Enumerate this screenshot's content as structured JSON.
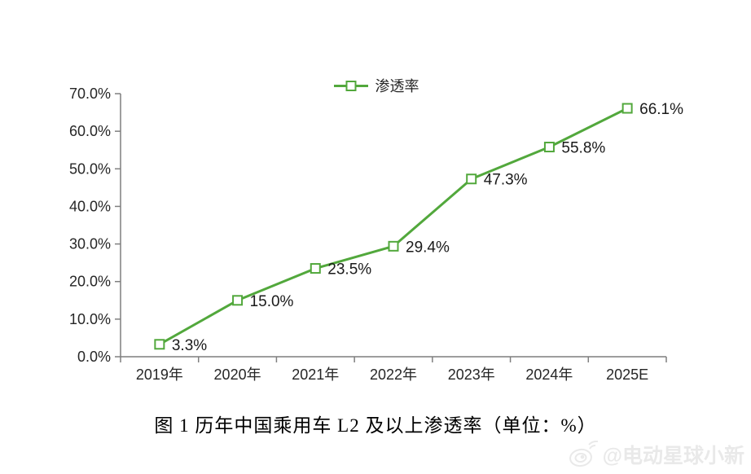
{
  "figure": {
    "title": "图 1  历年中国乘用车 L2 及以上渗透率（单位：%）",
    "watermark": "@电动星球小新"
  },
  "legend": {
    "label": "渗透率"
  },
  "chart_data": {
    "type": "line",
    "title": "图 1 历年中国乘用车 L2 及以上渗透率（单位：%）",
    "categories": [
      "2019年",
      "2020年",
      "2021年",
      "2022年",
      "2023年",
      "2024年",
      "2025E"
    ],
    "series": [
      {
        "name": "渗透率",
        "values": [
          3.3,
          15.0,
          23.5,
          29.4,
          47.3,
          55.8,
          66.1
        ]
      }
    ],
    "point_labels": [
      "3.3%",
      "15.0%",
      "23.5%",
      "29.4%",
      "47.3%",
      "55.8%",
      "66.1%"
    ],
    "xlabel": "",
    "ylabel": "",
    "ylim": [
      0,
      70
    ],
    "ytick_step": 10,
    "ytick_labels": [
      "0.0%",
      "10.0%",
      "20.0%",
      "30.0%",
      "40.0%",
      "50.0%",
      "60.0%",
      "70.0%"
    ],
    "grid": false,
    "legend_position": "top-center",
    "colors": {
      "line": "#52a83c",
      "marker_fill": "#ffffff",
      "axis": "#7f7f7f",
      "text": "#262626",
      "data_label": "#1a1a1a"
    }
  }
}
